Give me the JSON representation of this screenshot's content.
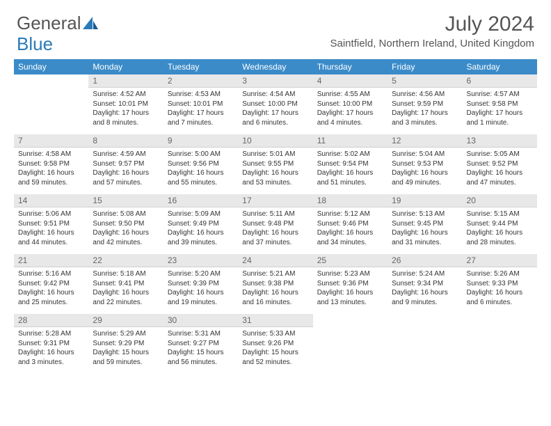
{
  "logo": {
    "text1": "General",
    "text2": "Blue"
  },
  "title": "July 2024",
  "location": "Saintfield, Northern Ireland, United Kingdom",
  "colors": {
    "header_bg": "#3b8bc9",
    "header_text": "#ffffff",
    "daynum_bg": "#e8e8e8",
    "daynum_text": "#666666",
    "body_text": "#333333",
    "title_text": "#555555"
  },
  "days_of_week": [
    "Sunday",
    "Monday",
    "Tuesday",
    "Wednesday",
    "Thursday",
    "Friday",
    "Saturday"
  ],
  "weeks": [
    [
      {
        "num": "",
        "lines": []
      },
      {
        "num": "1",
        "lines": [
          "Sunrise: 4:52 AM",
          "Sunset: 10:01 PM",
          "Daylight: 17 hours",
          "and 8 minutes."
        ]
      },
      {
        "num": "2",
        "lines": [
          "Sunrise: 4:53 AM",
          "Sunset: 10:01 PM",
          "Daylight: 17 hours",
          "and 7 minutes."
        ]
      },
      {
        "num": "3",
        "lines": [
          "Sunrise: 4:54 AM",
          "Sunset: 10:00 PM",
          "Daylight: 17 hours",
          "and 6 minutes."
        ]
      },
      {
        "num": "4",
        "lines": [
          "Sunrise: 4:55 AM",
          "Sunset: 10:00 PM",
          "Daylight: 17 hours",
          "and 4 minutes."
        ]
      },
      {
        "num": "5",
        "lines": [
          "Sunrise: 4:56 AM",
          "Sunset: 9:59 PM",
          "Daylight: 17 hours",
          "and 3 minutes."
        ]
      },
      {
        "num": "6",
        "lines": [
          "Sunrise: 4:57 AM",
          "Sunset: 9:58 PM",
          "Daylight: 17 hours",
          "and 1 minute."
        ]
      }
    ],
    [
      {
        "num": "7",
        "lines": [
          "Sunrise: 4:58 AM",
          "Sunset: 9:58 PM",
          "Daylight: 16 hours",
          "and 59 minutes."
        ]
      },
      {
        "num": "8",
        "lines": [
          "Sunrise: 4:59 AM",
          "Sunset: 9:57 PM",
          "Daylight: 16 hours",
          "and 57 minutes."
        ]
      },
      {
        "num": "9",
        "lines": [
          "Sunrise: 5:00 AM",
          "Sunset: 9:56 PM",
          "Daylight: 16 hours",
          "and 55 minutes."
        ]
      },
      {
        "num": "10",
        "lines": [
          "Sunrise: 5:01 AM",
          "Sunset: 9:55 PM",
          "Daylight: 16 hours",
          "and 53 minutes."
        ]
      },
      {
        "num": "11",
        "lines": [
          "Sunrise: 5:02 AM",
          "Sunset: 9:54 PM",
          "Daylight: 16 hours",
          "and 51 minutes."
        ]
      },
      {
        "num": "12",
        "lines": [
          "Sunrise: 5:04 AM",
          "Sunset: 9:53 PM",
          "Daylight: 16 hours",
          "and 49 minutes."
        ]
      },
      {
        "num": "13",
        "lines": [
          "Sunrise: 5:05 AM",
          "Sunset: 9:52 PM",
          "Daylight: 16 hours",
          "and 47 minutes."
        ]
      }
    ],
    [
      {
        "num": "14",
        "lines": [
          "Sunrise: 5:06 AM",
          "Sunset: 9:51 PM",
          "Daylight: 16 hours",
          "and 44 minutes."
        ]
      },
      {
        "num": "15",
        "lines": [
          "Sunrise: 5:08 AM",
          "Sunset: 9:50 PM",
          "Daylight: 16 hours",
          "and 42 minutes."
        ]
      },
      {
        "num": "16",
        "lines": [
          "Sunrise: 5:09 AM",
          "Sunset: 9:49 PM",
          "Daylight: 16 hours",
          "and 39 minutes."
        ]
      },
      {
        "num": "17",
        "lines": [
          "Sunrise: 5:11 AM",
          "Sunset: 9:48 PM",
          "Daylight: 16 hours",
          "and 37 minutes."
        ]
      },
      {
        "num": "18",
        "lines": [
          "Sunrise: 5:12 AM",
          "Sunset: 9:46 PM",
          "Daylight: 16 hours",
          "and 34 minutes."
        ]
      },
      {
        "num": "19",
        "lines": [
          "Sunrise: 5:13 AM",
          "Sunset: 9:45 PM",
          "Daylight: 16 hours",
          "and 31 minutes."
        ]
      },
      {
        "num": "20",
        "lines": [
          "Sunrise: 5:15 AM",
          "Sunset: 9:44 PM",
          "Daylight: 16 hours",
          "and 28 minutes."
        ]
      }
    ],
    [
      {
        "num": "21",
        "lines": [
          "Sunrise: 5:16 AM",
          "Sunset: 9:42 PM",
          "Daylight: 16 hours",
          "and 25 minutes."
        ]
      },
      {
        "num": "22",
        "lines": [
          "Sunrise: 5:18 AM",
          "Sunset: 9:41 PM",
          "Daylight: 16 hours",
          "and 22 minutes."
        ]
      },
      {
        "num": "23",
        "lines": [
          "Sunrise: 5:20 AM",
          "Sunset: 9:39 PM",
          "Daylight: 16 hours",
          "and 19 minutes."
        ]
      },
      {
        "num": "24",
        "lines": [
          "Sunrise: 5:21 AM",
          "Sunset: 9:38 PM",
          "Daylight: 16 hours",
          "and 16 minutes."
        ]
      },
      {
        "num": "25",
        "lines": [
          "Sunrise: 5:23 AM",
          "Sunset: 9:36 PM",
          "Daylight: 16 hours",
          "and 13 minutes."
        ]
      },
      {
        "num": "26",
        "lines": [
          "Sunrise: 5:24 AM",
          "Sunset: 9:34 PM",
          "Daylight: 16 hours",
          "and 9 minutes."
        ]
      },
      {
        "num": "27",
        "lines": [
          "Sunrise: 5:26 AM",
          "Sunset: 9:33 PM",
          "Daylight: 16 hours",
          "and 6 minutes."
        ]
      }
    ],
    [
      {
        "num": "28",
        "lines": [
          "Sunrise: 5:28 AM",
          "Sunset: 9:31 PM",
          "Daylight: 16 hours",
          "and 3 minutes."
        ]
      },
      {
        "num": "29",
        "lines": [
          "Sunrise: 5:29 AM",
          "Sunset: 9:29 PM",
          "Daylight: 15 hours",
          "and 59 minutes."
        ]
      },
      {
        "num": "30",
        "lines": [
          "Sunrise: 5:31 AM",
          "Sunset: 9:27 PM",
          "Daylight: 15 hours",
          "and 56 minutes."
        ]
      },
      {
        "num": "31",
        "lines": [
          "Sunrise: 5:33 AM",
          "Sunset: 9:26 PM",
          "Daylight: 15 hours",
          "and 52 minutes."
        ]
      },
      {
        "num": "",
        "lines": []
      },
      {
        "num": "",
        "lines": []
      },
      {
        "num": "",
        "lines": []
      }
    ]
  ]
}
